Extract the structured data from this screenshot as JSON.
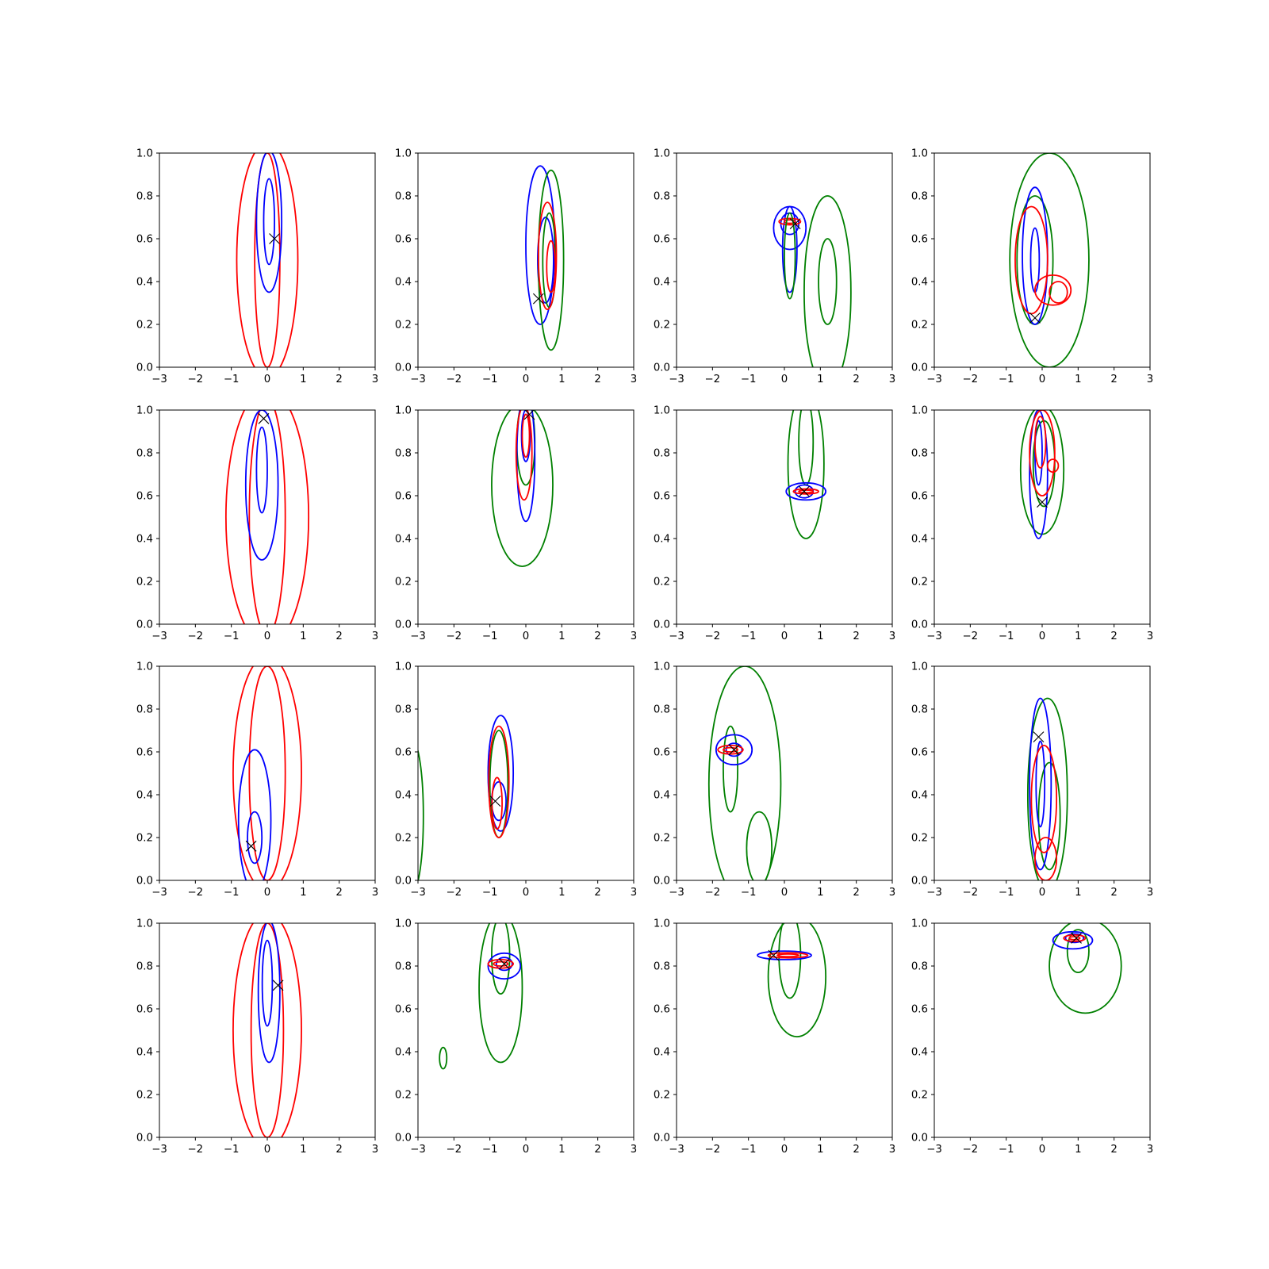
{
  "chart_data": {
    "type": "contour",
    "layout": {
      "rows": 4,
      "cols": 4
    },
    "xlim": [
      -3,
      3
    ],
    "ylim": [
      0,
      1
    ],
    "xticks": [
      "−3",
      "−2",
      "−1",
      "0",
      "1",
      "2",
      "3"
    ],
    "yticks": [
      "0.0",
      "0.2",
      "0.4",
      "0.6",
      "0.8",
      "1.0"
    ],
    "colors": {
      "red": "#ff0000",
      "blue": "#0000ff",
      "green": "#008000",
      "marker": "#000000"
    },
    "marker_symbol": "x",
    "panels": [
      {
        "marker": [
          0.2,
          0.6
        ],
        "contours": [
          {
            "color": "red",
            "cx": 0.0,
            "cy": 0.5,
            "rx": 0.85,
            "ry": 0.55
          },
          {
            "color": "red",
            "cx": 0.0,
            "cy": 0.5,
            "rx": 0.35,
            "ry": 0.5
          },
          {
            "color": "blue",
            "cx": 0.05,
            "cy": 0.68,
            "rx": 0.35,
            "ry": 0.33
          },
          {
            "color": "blue",
            "cx": 0.05,
            "cy": 0.68,
            "rx": 0.15,
            "ry": 0.2
          }
        ]
      },
      {
        "marker": [
          0.35,
          0.32
        ],
        "contours": [
          {
            "color": "blue",
            "cx": 0.4,
            "cy": 0.57,
            "rx": 0.4,
            "ry": 0.37
          },
          {
            "color": "blue",
            "cx": 0.55,
            "cy": 0.5,
            "rx": 0.22,
            "ry": 0.2
          },
          {
            "color": "green",
            "cx": 0.7,
            "cy": 0.5,
            "rx": 0.35,
            "ry": 0.42
          },
          {
            "color": "green",
            "cx": 0.65,
            "cy": 0.5,
            "rx": 0.18,
            "ry": 0.22
          },
          {
            "color": "red",
            "cx": 0.6,
            "cy": 0.52,
            "rx": 0.25,
            "ry": 0.25
          },
          {
            "color": "red",
            "cx": 0.7,
            "cy": 0.47,
            "rx": 0.12,
            "ry": 0.12
          }
        ]
      },
      {
        "marker": [
          0.3,
          0.67
        ],
        "contours": [
          {
            "color": "blue",
            "cx": 0.15,
            "cy": 0.65,
            "rx": 0.45,
            "ry": 0.1
          },
          {
            "color": "blue",
            "cx": 0.15,
            "cy": 0.55,
            "rx": 0.2,
            "ry": 0.2
          },
          {
            "color": "blue",
            "cx": 0.15,
            "cy": 0.67,
            "rx": 0.25,
            "ry": 0.05
          },
          {
            "color": "red",
            "cx": 0.15,
            "cy": 0.68,
            "rx": 0.3,
            "ry": 0.015
          },
          {
            "color": "red",
            "cx": 0.15,
            "cy": 0.68,
            "rx": 0.15,
            "ry": 0.008
          },
          {
            "color": "green",
            "cx": 0.15,
            "cy": 0.52,
            "rx": 0.15,
            "ry": 0.2
          },
          {
            "color": "green",
            "cx": 1.2,
            "cy": 0.35,
            "rx": 0.65,
            "ry": 0.45
          },
          {
            "color": "green",
            "cx": 1.2,
            "cy": 0.4,
            "rx": 0.25,
            "ry": 0.2
          }
        ]
      },
      {
        "marker": [
          -0.2,
          0.23
        ],
        "contours": [
          {
            "color": "green",
            "cx": 0.2,
            "cy": 0.5,
            "rx": 1.1,
            "ry": 0.5
          },
          {
            "color": "green",
            "cx": -0.2,
            "cy": 0.5,
            "rx": 0.5,
            "ry": 0.3
          },
          {
            "color": "blue",
            "cx": -0.2,
            "cy": 0.52,
            "rx": 0.35,
            "ry": 0.32
          },
          {
            "color": "blue",
            "cx": -0.2,
            "cy": 0.5,
            "rx": 0.12,
            "ry": 0.15
          },
          {
            "color": "red",
            "cx": -0.3,
            "cy": 0.5,
            "rx": 0.45,
            "ry": 0.25
          },
          {
            "color": "red",
            "cx": 0.3,
            "cy": 0.36,
            "rx": 0.5,
            "ry": 0.07
          },
          {
            "color": "red",
            "cx": 0.45,
            "cy": 0.35,
            "rx": 0.25,
            "ry": 0.05
          }
        ]
      },
      {
        "marker": [
          -0.1,
          0.96
        ],
        "contours": [
          {
            "color": "red",
            "cx": 0.0,
            "cy": 0.5,
            "rx": 1.15,
            "ry": 0.6
          },
          {
            "color": "red",
            "cx": 0.0,
            "cy": 0.5,
            "rx": 0.5,
            "ry": 0.55
          },
          {
            "color": "blue",
            "cx": -0.15,
            "cy": 0.65,
            "rx": 0.45,
            "ry": 0.35
          },
          {
            "color": "blue",
            "cx": -0.15,
            "cy": 0.72,
            "rx": 0.15,
            "ry": 0.2
          }
        ]
      },
      {
        "marker": [
          0.1,
          0.98
        ],
        "contours": [
          {
            "color": "green",
            "cx": -0.1,
            "cy": 0.65,
            "rx": 0.85,
            "ry": 0.38
          },
          {
            "color": "green",
            "cx": 0.0,
            "cy": 0.85,
            "rx": 0.25,
            "ry": 0.2
          },
          {
            "color": "blue",
            "cx": 0.0,
            "cy": 0.78,
            "rx": 0.25,
            "ry": 0.3
          },
          {
            "color": "blue",
            "cx": 0.0,
            "cy": 0.88,
            "rx": 0.12,
            "ry": 0.12
          },
          {
            "color": "red",
            "cx": -0.05,
            "cy": 0.8,
            "rx": 0.22,
            "ry": 0.22
          },
          {
            "color": "red",
            "cx": 0.0,
            "cy": 0.88,
            "rx": 0.1,
            "ry": 0.1
          }
        ]
      },
      {
        "marker": [
          0.55,
          0.62
        ],
        "contours": [
          {
            "color": "green",
            "cx": 0.6,
            "cy": 0.75,
            "rx": 0.5,
            "ry": 0.35
          },
          {
            "color": "green",
            "cx": 0.6,
            "cy": 0.85,
            "rx": 0.2,
            "ry": 0.2
          },
          {
            "color": "blue",
            "cx": 0.6,
            "cy": 0.62,
            "rx": 0.55,
            "ry": 0.04
          },
          {
            "color": "blue",
            "cx": 0.55,
            "cy": 0.62,
            "rx": 0.25,
            "ry": 0.03
          },
          {
            "color": "red",
            "cx": 0.6,
            "cy": 0.62,
            "rx": 0.35,
            "ry": 0.012
          },
          {
            "color": "red",
            "cx": 0.6,
            "cy": 0.62,
            "rx": 0.2,
            "ry": 0.006
          }
        ]
      },
      {
        "marker": [
          0.0,
          0.57
        ],
        "contours": [
          {
            "color": "green",
            "cx": 0.0,
            "cy": 0.72,
            "rx": 0.6,
            "ry": 0.3
          },
          {
            "color": "green",
            "cx": 0.05,
            "cy": 0.75,
            "rx": 0.3,
            "ry": 0.2
          },
          {
            "color": "blue",
            "cx": -0.1,
            "cy": 0.7,
            "rx": 0.25,
            "ry": 0.3
          },
          {
            "color": "blue",
            "cx": -0.1,
            "cy": 0.8,
            "rx": 0.1,
            "ry": 0.15
          },
          {
            "color": "red",
            "cx": 0.0,
            "cy": 0.8,
            "rx": 0.35,
            "ry": 0.2
          },
          {
            "color": "red",
            "cx": -0.05,
            "cy": 0.85,
            "rx": 0.15,
            "ry": 0.12
          },
          {
            "color": "red",
            "cx": 0.3,
            "cy": 0.74,
            "rx": 0.15,
            "ry": 0.03
          }
        ]
      },
      {
        "marker": [
          -0.45,
          0.16
        ],
        "contours": [
          {
            "color": "red",
            "cx": 0.0,
            "cy": 0.5,
            "rx": 0.95,
            "ry": 0.55
          },
          {
            "color": "red",
            "cx": 0.0,
            "cy": 0.5,
            "rx": 0.5,
            "ry": 0.5
          },
          {
            "color": "blue",
            "cx": -0.35,
            "cy": 0.28,
            "rx": 0.45,
            "ry": 0.33
          },
          {
            "color": "blue",
            "cx": -0.35,
            "cy": 0.2,
            "rx": 0.2,
            "ry": 0.12
          }
        ]
      },
      {
        "marker": [
          -0.85,
          0.37
        ],
        "contours": [
          {
            "color": "green",
            "cx": -3.15,
            "cy": 0.3,
            "rx": 0.3,
            "ry": 0.35
          },
          {
            "color": "blue",
            "cx": -0.7,
            "cy": 0.5,
            "rx": 0.35,
            "ry": 0.27
          },
          {
            "color": "blue",
            "cx": -0.75,
            "cy": 0.37,
            "rx": 0.2,
            "ry": 0.09
          },
          {
            "color": "green",
            "cx": -0.75,
            "cy": 0.45,
            "rx": 0.25,
            "ry": 0.25
          },
          {
            "color": "red",
            "cx": -0.75,
            "cy": 0.46,
            "rx": 0.28,
            "ry": 0.26
          },
          {
            "color": "red",
            "cx": -0.8,
            "cy": 0.36,
            "rx": 0.14,
            "ry": 0.12
          }
        ]
      },
      {
        "marker": [
          -1.4,
          0.61
        ],
        "contours": [
          {
            "color": "green",
            "cx": -1.1,
            "cy": 0.45,
            "rx": 1.0,
            "ry": 0.55
          },
          {
            "color": "green",
            "cx": -1.5,
            "cy": 0.52,
            "rx": 0.2,
            "ry": 0.2
          },
          {
            "color": "green",
            "cx": -0.7,
            "cy": 0.15,
            "rx": 0.35,
            "ry": 0.17
          },
          {
            "color": "blue",
            "cx": -1.4,
            "cy": 0.61,
            "rx": 0.5,
            "ry": 0.07
          },
          {
            "color": "blue",
            "cx": -1.4,
            "cy": 0.61,
            "rx": 0.22,
            "ry": 0.03
          },
          {
            "color": "red",
            "cx": -1.5,
            "cy": 0.61,
            "rx": 0.35,
            "ry": 0.02
          },
          {
            "color": "red",
            "cx": -1.5,
            "cy": 0.61,
            "rx": 0.2,
            "ry": 0.01
          }
        ]
      },
      {
        "marker": [
          -0.1,
          0.67
        ],
        "contours": [
          {
            "color": "green",
            "cx": 0.15,
            "cy": 0.4,
            "rx": 0.55,
            "ry": 0.45
          },
          {
            "color": "green",
            "cx": 0.2,
            "cy": 0.3,
            "rx": 0.3,
            "ry": 0.25
          },
          {
            "color": "blue",
            "cx": -0.05,
            "cy": 0.45,
            "rx": 0.3,
            "ry": 0.4
          },
          {
            "color": "blue",
            "cx": -0.05,
            "cy": 0.45,
            "rx": 0.12,
            "ry": 0.2
          },
          {
            "color": "red",
            "cx": 0.05,
            "cy": 0.38,
            "rx": 0.35,
            "ry": 0.25
          },
          {
            "color": "red",
            "cx": 0.1,
            "cy": 0.1,
            "rx": 0.3,
            "ry": 0.1
          }
        ]
      },
      {
        "marker": [
          0.3,
          0.71
        ],
        "contours": [
          {
            "color": "red",
            "cx": 0.0,
            "cy": 0.5,
            "rx": 0.95,
            "ry": 0.55
          },
          {
            "color": "red",
            "cx": 0.0,
            "cy": 0.5,
            "rx": 0.45,
            "ry": 0.5
          },
          {
            "color": "blue",
            "cx": 0.05,
            "cy": 0.68,
            "rx": 0.3,
            "ry": 0.33
          },
          {
            "color": "blue",
            "cx": 0.0,
            "cy": 0.72,
            "rx": 0.14,
            "ry": 0.2
          }
        ]
      },
      {
        "marker": [
          -0.6,
          0.81
        ],
        "contours": [
          {
            "color": "green",
            "cx": -2.3,
            "cy": 0.37,
            "rx": 0.1,
            "ry": 0.05
          },
          {
            "color": "green",
            "cx": -0.7,
            "cy": 0.7,
            "rx": 0.6,
            "ry": 0.35
          },
          {
            "color": "green",
            "cx": -0.7,
            "cy": 0.85,
            "rx": 0.25,
            "ry": 0.18
          },
          {
            "color": "blue",
            "cx": -0.6,
            "cy": 0.8,
            "rx": 0.45,
            "ry": 0.06
          },
          {
            "color": "blue",
            "cx": -0.6,
            "cy": 0.81,
            "rx": 0.22,
            "ry": 0.03
          },
          {
            "color": "red",
            "cx": -0.7,
            "cy": 0.81,
            "rx": 0.35,
            "ry": 0.02
          },
          {
            "color": "red",
            "cx": -0.7,
            "cy": 0.81,
            "rx": 0.2,
            "ry": 0.01
          }
        ]
      },
      {
        "marker": [
          -0.3,
          0.85
        ],
        "contours": [
          {
            "color": "green",
            "cx": 0.35,
            "cy": 0.75,
            "rx": 0.8,
            "ry": 0.28
          },
          {
            "color": "green",
            "cx": 0.15,
            "cy": 0.85,
            "rx": 0.3,
            "ry": 0.2
          },
          {
            "color": "blue",
            "cx": 0.0,
            "cy": 0.85,
            "rx": 0.75,
            "ry": 0.02
          },
          {
            "color": "red",
            "cx": 0.1,
            "cy": 0.85,
            "rx": 0.55,
            "ry": 0.012
          },
          {
            "color": "red",
            "cx": 0.1,
            "cy": 0.85,
            "rx": 0.3,
            "ry": 0.006
          }
        ]
      },
      {
        "marker": [
          0.95,
          0.93
        ],
        "contours": [
          {
            "color": "green",
            "cx": 1.2,
            "cy": 0.8,
            "rx": 1.0,
            "ry": 0.22
          },
          {
            "color": "green",
            "cx": 1.0,
            "cy": 0.87,
            "rx": 0.3,
            "ry": 0.1
          },
          {
            "color": "blue",
            "cx": 0.85,
            "cy": 0.92,
            "rx": 0.55,
            "ry": 0.04
          },
          {
            "color": "blue",
            "cx": 0.9,
            "cy": 0.93,
            "rx": 0.25,
            "ry": 0.02
          },
          {
            "color": "red",
            "cx": 0.9,
            "cy": 0.93,
            "rx": 0.3,
            "ry": 0.015
          },
          {
            "color": "red",
            "cx": 0.9,
            "cy": 0.93,
            "rx": 0.15,
            "ry": 0.007
          }
        ]
      }
    ]
  }
}
